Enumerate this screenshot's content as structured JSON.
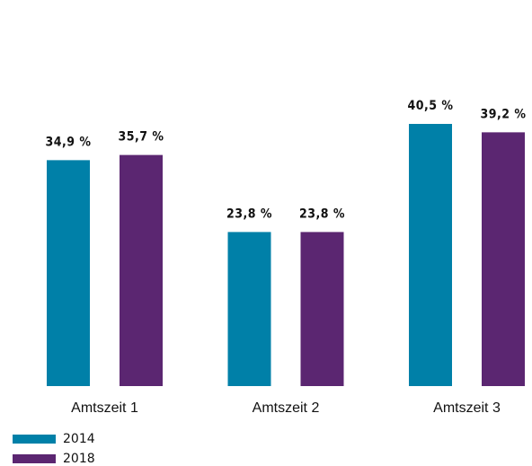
{
  "chart_data": {
    "type": "bar",
    "categories": [
      "Amtszeit 1",
      "Amtszeit 2",
      "Amtszeit 3"
    ],
    "series": [
      {
        "name": "2014",
        "color": "#0080a8",
        "values": [
          34.9,
          23.8,
          40.5
        ],
        "value_labels": [
          "34,9 %",
          "23,8 %",
          "40,5 %"
        ]
      },
      {
        "name": "2018",
        "color": "#5b2671",
        "values": [
          35.7,
          23.8,
          39.2
        ],
        "value_labels": [
          "35,7 %",
          "23,8 %",
          "39,2 %"
        ]
      }
    ],
    "legend": "bottom-left"
  }
}
